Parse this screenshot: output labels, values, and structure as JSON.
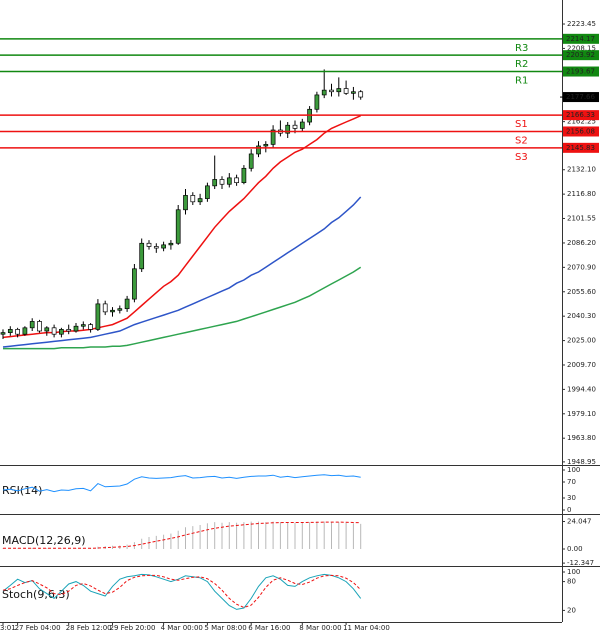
{
  "chart_data": [
    {
      "type": "candlestick",
      "categories": [
        "3:01",
        null,
        "27 Feb 04:00",
        null,
        null,
        null,
        null,
        null,
        null,
        "28 Feb 12:00",
        null,
        null,
        null,
        null,
        null,
        "29 Feb 20:00",
        null,
        null,
        null,
        null,
        null,
        null,
        "4 Mar 00:00",
        null,
        null,
        null,
        null,
        null,
        "5 Mar 08:00",
        null,
        null,
        null,
        null,
        null,
        "6 Mar 16:00",
        null,
        null,
        null,
        null,
        null,
        null,
        "8 Mar 00:00",
        null,
        null,
        null,
        null,
        null,
        "11 Mar 04:00",
        null,
        null
      ],
      "open": [
        2029,
        2030,
        2032,
        2029,
        2033,
        2037,
        2031,
        2033,
        2029,
        2032,
        2031,
        2034,
        2035,
        2032,
        2048,
        2043,
        2044,
        2045,
        2051,
        2070,
        2086,
        2084,
        2083,
        2085,
        2086,
        2107,
        2116,
        2112,
        2114,
        2122,
        2126,
        2123,
        2127,
        2124,
        2133,
        2142,
        2147,
        2148,
        2157,
        2155,
        2160,
        2158,
        2162,
        2170,
        2179,
        2182,
        2181,
        2183,
        2180,
        2181
      ],
      "high": [
        2032,
        2034,
        2033,
        2034,
        2039,
        2038,
        2034,
        2035,
        2033,
        2035,
        2036,
        2037,
        2036,
        2051,
        2050,
        2046,
        2047,
        2053,
        2073,
        2089,
        2088,
        2086,
        2087,
        2088,
        2110,
        2120,
        2118,
        2117,
        2124,
        2141,
        2128,
        2130,
        2129,
        2135,
        2145,
        2150,
        2150,
        2160,
        2163,
        2162,
        2163,
        2164,
        2172,
        2181,
        2195,
        2186,
        2190,
        2188,
        2184,
        2182
      ],
      "low": [
        2026,
        2028,
        2027,
        2028,
        2031,
        2030,
        2028,
        2027,
        2027,
        2029,
        2030,
        2032,
        2030,
        2031,
        2041,
        2040,
        2042,
        2043,
        2049,
        2068,
        2082,
        2080,
        2081,
        2082,
        2085,
        2104,
        2110,
        2110,
        2112,
        2120,
        2120,
        2121,
        2122,
        2123,
        2131,
        2140,
        2143,
        2146,
        2153,
        2152,
        2155,
        2156,
        2160,
        2168,
        2177,
        2178,
        2178,
        2179,
        2176,
        2176
      ],
      "close": [
        2030,
        2032,
        2029,
        2033,
        2037,
        2031,
        2033,
        2029,
        2032,
        2031,
        2034,
        2035,
        2032,
        2048,
        2043,
        2044,
        2045,
        2051,
        2070,
        2086,
        2084,
        2083,
        2085,
        2086,
        2107,
        2116,
        2112,
        2114,
        2122,
        2126,
        2123,
        2127,
        2124,
        2133,
        2142,
        2147,
        2148,
        2157,
        2155,
        2160,
        2158,
        2162,
        2170,
        2179,
        2182,
        2181,
        2183,
        2180,
        2181,
        2177.66
      ],
      "up_color": "#3c9a3c",
      "down_color": "#ffffff",
      "series": [
        {
          "color": "#ee1111",
          "values": [
            2027,
            2027.5,
            2028,
            2028.5,
            2029,
            2029.5,
            2030,
            2030,
            2030.5,
            2031,
            2031,
            2031.5,
            2032,
            2033,
            2034,
            2035,
            2037,
            2039,
            2043,
            2047,
            2051,
            2055,
            2059,
            2062,
            2066,
            2072,
            2078,
            2084,
            2090,
            2096,
            2101,
            2106,
            2110,
            2114,
            2119,
            2124,
            2128,
            2133,
            2137,
            2140,
            2143,
            2145,
            2148,
            2151,
            2155,
            2158,
            2160,
            2162,
            2164,
            2166
          ]
        },
        {
          "color": "#2e55c8",
          "values": [
            2021,
            2021.5,
            2022,
            2022.5,
            2023,
            2023.5,
            2024,
            2024.5,
            2025,
            2025.5,
            2026,
            2026.5,
            2027,
            2028,
            2029,
            2030,
            2031,
            2033,
            2035,
            2036.5,
            2038,
            2039.5,
            2041,
            2042.5,
            2044,
            2046,
            2048,
            2050,
            2052,
            2054,
            2056,
            2058,
            2061,
            2063,
            2066,
            2068,
            2071,
            2074,
            2077,
            2080,
            2083,
            2086,
            2089,
            2092,
            2095,
            2099,
            2102,
            2106,
            2110,
            2115
          ]
        },
        {
          "color": "#2ea44f",
          "values": [
            2020,
            2020,
            2020,
            2020,
            2020,
            2020,
            2020,
            2020,
            2020.5,
            2020.5,
            2020.5,
            2020.5,
            2021,
            2021,
            2021,
            2021.5,
            2021.5,
            2022,
            2023,
            2024,
            2025,
            2026,
            2027,
            2028,
            2029,
            2030,
            2031,
            2032,
            2033,
            2034,
            2035,
            2036,
            2037,
            2038.5,
            2040,
            2041.5,
            2043,
            2044.5,
            2046,
            2047.5,
            2049,
            2051,
            2053,
            2055.5,
            2058,
            2060.5,
            2063,
            2065.5,
            2068,
            2071
          ]
        }
      ],
      "levels": [
        {
          "label": "R3",
          "value": 2214.17,
          "color": "#118811"
        },
        {
          "label": "R2",
          "value": 2203.92,
          "color": "#118811"
        },
        {
          "label": "R1",
          "value": 2193.67,
          "color": "#118811"
        },
        {
          "label": "S1",
          "value": 2166.33,
          "color": "#ee1111"
        },
        {
          "label": "S2",
          "value": 2156.08,
          "color": "#ee1111"
        },
        {
          "label": "S3",
          "value": 2145.83,
          "color": "#ee1111"
        }
      ],
      "last_price": 2177.66,
      "ylim": [
        1947,
        2236
      ],
      "yticks": [
        2223.45,
        2208.15,
        2162.25,
        {
          "value": 2132.1,
          "label": "2132.10"
        },
        {
          "value": 2116.8,
          "label": "2116.80"
        },
        2101.55,
        {
          "value": 2086.2,
          "label": "2086.20"
        },
        {
          "value": 2070.9,
          "label": "2070.90"
        },
        {
          "value": 2055.6,
          "label": "2055.60"
        },
        {
          "value": 2040.3,
          "label": "2040.30"
        },
        {
          "value": 2025,
          "label": "2025.00"
        },
        {
          "value": 2009.7,
          "label": "2009.70"
        },
        {
          "value": 1994.4,
          "label": "1994.40"
        },
        {
          "value": 1979.1,
          "label": "1979.10"
        },
        {
          "value": 1963.8,
          "label": "1963.80"
        },
        1948.95
      ]
    },
    {
      "type": "line",
      "title": "RSI(14)",
      "ylim": [
        0,
        100
      ],
      "yticks": [
        100,
        70,
        30,
        0
      ],
      "series": [
        {
          "color": "#1e90ff",
          "style": "line",
          "values": [
            50,
            52,
            48,
            53,
            57,
            47,
            51,
            46,
            50,
            49,
            53,
            54,
            48,
            66,
            58,
            59,
            60,
            65,
            77,
            83,
            80,
            79,
            80,
            81,
            84,
            86,
            80,
            81,
            83,
            84,
            80,
            82,
            79,
            82,
            84,
            85,
            85,
            87,
            82,
            84,
            81,
            83,
            85,
            87,
            88,
            86,
            87,
            84,
            85,
            82
          ]
        }
      ]
    },
    {
      "type": "line",
      "title": "MACD(12,26,9)",
      "ylim": [
        -14,
        28
      ],
      "yticks": [
        24.047,
        {
          "value": 0,
          "label": "0.00"
        },
        -12.347
      ],
      "series": [
        {
          "color": "#b8b8b8",
          "style": "bar",
          "values": [
            0.5,
            0.6,
            0.4,
            0.6,
            1,
            0.8,
            0.7,
            0.4,
            0.5,
            0.4,
            0.6,
            0.8,
            0.6,
            2,
            2.5,
            2.8,
            3,
            3.8,
            6,
            9,
            10.5,
            11.5,
            12.5,
            13.5,
            16,
            19,
            20,
            21,
            22.5,
            23.5,
            23,
            23.5,
            23,
            23.5,
            24,
            24,
            23.5,
            24,
            23.5,
            23.5,
            23,
            23,
            23.5,
            24,
            24,
            23.5,
            23.5,
            23,
            22.5,
            22
          ]
        },
        {
          "color": "#ee1111",
          "style": "dash",
          "values": [
            0.6,
            0.6,
            0.6,
            0.6,
            0.7,
            0.7,
            0.7,
            0.7,
            0.6,
            0.6,
            0.6,
            0.6,
            0.6,
            0.9,
            1.2,
            1.5,
            1.8,
            2.2,
            3,
            4.2,
            5.5,
            6.8,
            8,
            9.3,
            10.6,
            12.3,
            13.8,
            15.3,
            16.8,
            18.1,
            19.1,
            20,
            20.6,
            21.2,
            21.8,
            22.3,
            22.6,
            22.9,
            23.1,
            23.2,
            23.2,
            23.2,
            23.3,
            23.4,
            23.5,
            23.5,
            23.5,
            23.4,
            23.2,
            23
          ]
        }
      ]
    },
    {
      "type": "line",
      "title": "Stoch(9,6,3)",
      "ylim": [
        0,
        100
      ],
      "yticks": [
        100,
        80,
        20
      ],
      "series": [
        {
          "color": "#1aa3b8",
          "style": "line",
          "values": [
            60,
            72,
            85,
            78,
            82,
            65,
            55,
            45,
            60,
            75,
            80,
            72,
            60,
            55,
            50,
            70,
            85,
            90,
            92,
            95,
            94,
            90,
            85,
            80,
            85,
            92,
            90,
            88,
            80,
            60,
            45,
            30,
            22,
            25,
            45,
            70,
            88,
            92,
            85,
            72,
            70,
            80,
            88,
            92,
            95,
            93,
            88,
            80,
            65,
            45
          ]
        },
        {
          "color": "#ee1111",
          "style": "dash",
          "values": [
            62,
            65,
            72,
            78,
            82,
            75,
            67,
            55,
            53,
            60,
            72,
            76,
            71,
            62,
            55,
            58,
            68,
            82,
            89,
            92,
            93,
            93,
            90,
            85,
            83,
            86,
            89,
            90,
            86,
            76,
            62,
            45,
            33,
            26,
            31,
            47,
            68,
            83,
            88,
            83,
            76,
            74,
            79,
            87,
            92,
            93,
            92,
            87,
            78,
            63
          ]
        }
      ]
    }
  ]
}
